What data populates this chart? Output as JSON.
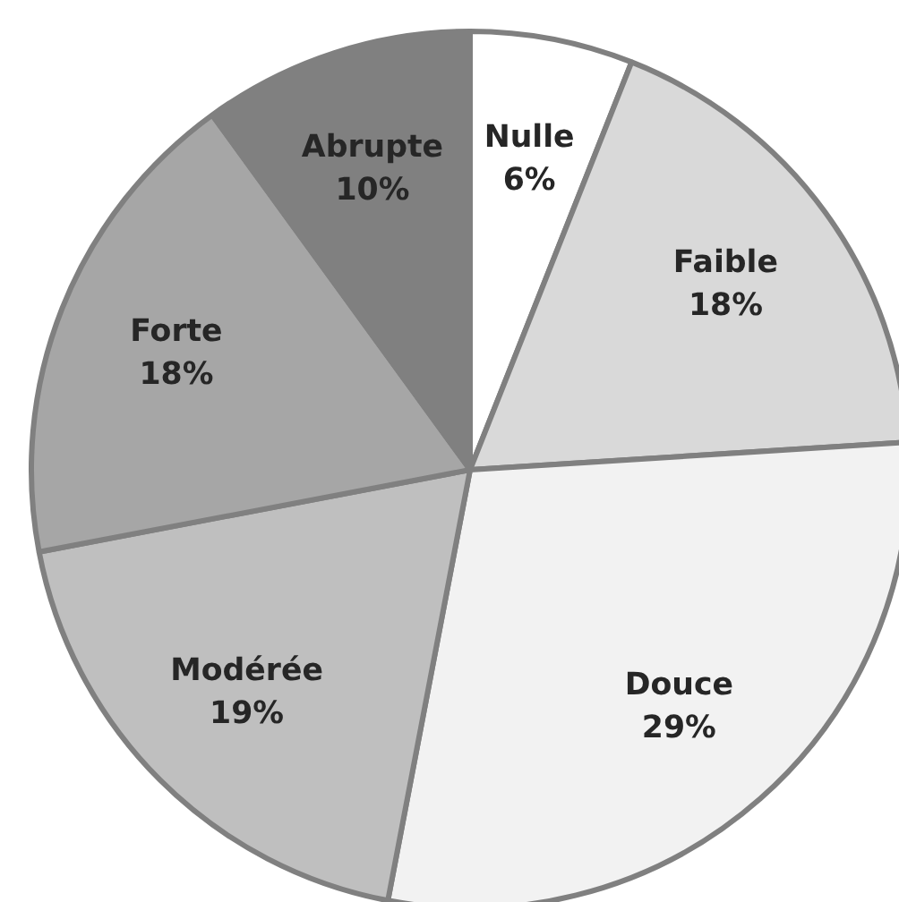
{
  "chart_data": {
    "type": "pie",
    "categories": [
      "Nulle",
      "Faible",
      "Douce",
      "Modérée",
      "Forte",
      "Abrupte"
    ],
    "values": [
      6,
      18,
      29,
      19,
      18,
      10
    ],
    "colors": [
      "#ffffff",
      "#d9d9d9",
      "#f2f2f2",
      "#bfbfbf",
      "#a6a6a6",
      "#808080"
    ],
    "value_labels": [
      "6%",
      "18%",
      "29%",
      "19%",
      "18%",
      "10%"
    ]
  }
}
